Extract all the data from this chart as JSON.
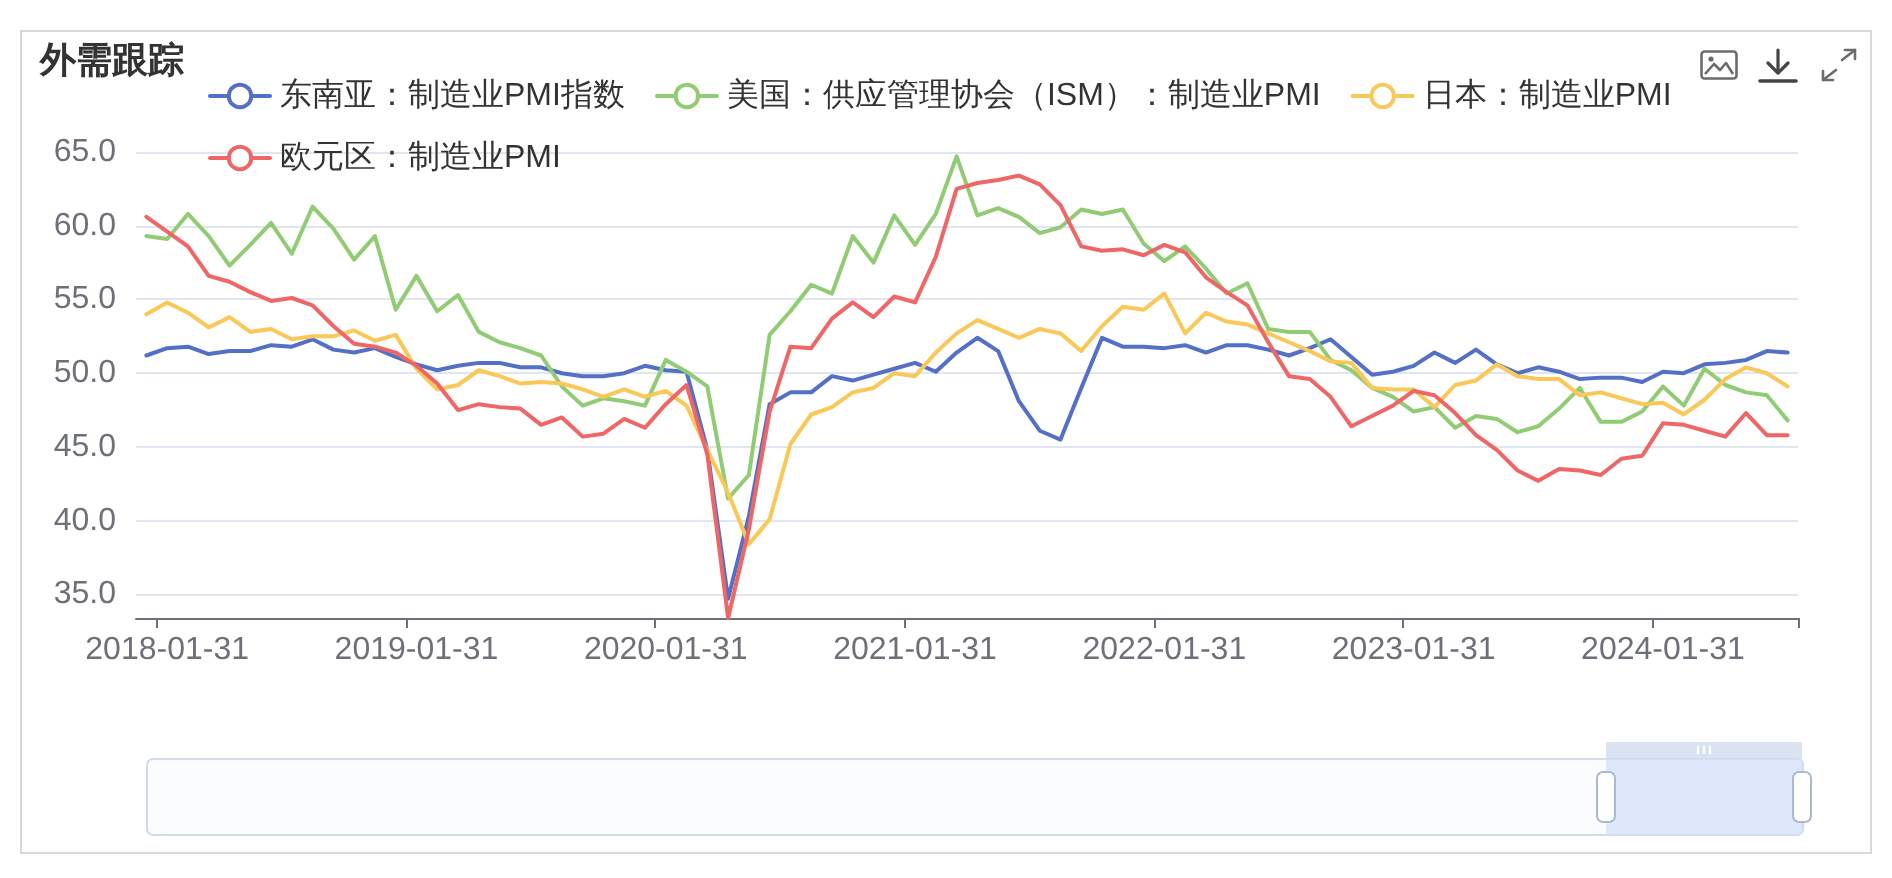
{
  "chart_data": {
    "type": "line",
    "title": "外需跟踪",
    "categories": [
      null,
      "2018-01-31",
      null,
      null,
      null,
      null,
      null,
      null,
      null,
      null,
      null,
      null,
      null,
      "2019-01-31",
      null,
      null,
      null,
      null,
      null,
      null,
      null,
      null,
      null,
      null,
      null,
      "2020-01-31",
      null,
      null,
      null,
      null,
      null,
      null,
      null,
      null,
      null,
      null,
      null,
      "2021-01-31",
      null,
      null,
      null,
      null,
      null,
      null,
      null,
      null,
      null,
      null,
      null,
      "2022-01-31",
      null,
      null,
      null,
      null,
      null,
      null,
      null,
      null,
      null,
      null,
      null,
      "2023-01-31",
      null,
      null,
      null,
      null,
      null,
      null,
      null,
      null,
      null,
      null,
      null,
      "2024-01-31",
      null,
      null,
      null,
      null,
      null,
      null
    ],
    "series": [
      {
        "name": "东南亚：制造业PMI指数",
        "color": "#5470c6",
        "values": [
          51.2,
          51.7,
          51.8,
          51.3,
          51.5,
          51.5,
          51.9,
          51.8,
          52.3,
          51.6,
          51.4,
          51.7,
          51.1,
          50.6,
          50.2,
          50.5,
          50.7,
          50.7,
          50.4,
          50.4,
          50.0,
          49.8,
          49.8,
          50.0,
          50.5,
          50.2,
          50.1,
          44.8,
          34.7,
          40.3,
          47.9,
          48.7,
          48.7,
          49.8,
          49.5,
          49.9,
          50.3,
          50.7,
          50.1,
          51.4,
          52.4,
          51.5,
          48.1,
          46.1,
          45.5,
          49.0,
          52.4,
          51.8,
          51.8,
          51.7,
          51.9,
          51.4,
          51.9,
          51.9,
          51.6,
          51.2,
          51.7,
          52.3,
          51.1,
          49.9,
          50.1,
          50.5,
          51.4,
          50.7,
          51.6,
          50.6,
          50.0,
          50.4,
          50.1,
          49.6,
          49.7,
          49.7,
          49.4,
          50.1,
          50.0,
          50.6,
          50.7,
          50.9,
          51.5,
          51.4
        ]
      },
      {
        "name": "美国：供应管理协会（ISM）：制造业PMI",
        "color": "#91cc75",
        "values": [
          59.3,
          59.1,
          60.8,
          59.3,
          57.3,
          58.7,
          60.2,
          58.1,
          61.3,
          59.8,
          57.7,
          59.3,
          54.3,
          56.6,
          54.2,
          55.3,
          52.8,
          52.1,
          51.7,
          51.2,
          49.1,
          47.8,
          48.3,
          48.1,
          47.8,
          50.9,
          50.1,
          49.1,
          41.5,
          43.1,
          52.6,
          54.2,
          56.0,
          55.4,
          59.3,
          57.5,
          60.7,
          58.7,
          60.8,
          64.7,
          60.7,
          61.2,
          60.6,
          59.5,
          59.9,
          61.1,
          60.8,
          61.1,
          58.8,
          57.6,
          58.6,
          57.1,
          55.4,
          56.1,
          53.0,
          52.8,
          52.8,
          50.9,
          50.2,
          49.0,
          48.4,
          47.4,
          47.7,
          46.3,
          47.1,
          46.9,
          46.0,
          46.4,
          47.6,
          49.0,
          46.7,
          46.7,
          47.4,
          49.1,
          47.8,
          50.3,
          49.2,
          48.7,
          48.5,
          46.8
        ]
      },
      {
        "name": "日本：制造业PMI",
        "color": "#fac858",
        "values": [
          54.0,
          54.8,
          54.1,
          53.1,
          53.8,
          52.8,
          53.0,
          52.3,
          52.5,
          52.5,
          52.9,
          52.2,
          52.6,
          50.3,
          48.9,
          49.2,
          50.2,
          49.8,
          49.3,
          49.4,
          49.3,
          48.9,
          48.4,
          48.9,
          48.4,
          48.8,
          47.8,
          44.8,
          41.9,
          38.4,
          40.1,
          45.2,
          47.2,
          47.7,
          48.7,
          49.0,
          50.0,
          49.8,
          51.4,
          52.7,
          53.6,
          53.0,
          52.4,
          53.0,
          52.7,
          51.5,
          53.2,
          54.5,
          54.3,
          55.4,
          52.7,
          54.1,
          53.5,
          53.3,
          52.7,
          52.1,
          51.5,
          50.8,
          50.7,
          49.0,
          48.9,
          48.9,
          47.7,
          49.2,
          49.5,
          50.6,
          49.8,
          49.6,
          49.6,
          48.5,
          48.7,
          48.3,
          47.9,
          48.0,
          47.2,
          48.2,
          49.6,
          50.4,
          50.0,
          49.1
        ]
      },
      {
        "name": "欧元区：制造业PMI",
        "color": "#ee6666",
        "values": [
          60.6,
          59.6,
          58.6,
          56.6,
          56.2,
          55.5,
          54.9,
          55.1,
          54.6,
          53.2,
          52.0,
          51.8,
          51.4,
          50.5,
          49.3,
          47.5,
          47.9,
          47.7,
          47.6,
          46.5,
          47.0,
          45.7,
          45.9,
          46.9,
          46.3,
          47.9,
          49.2,
          44.5,
          33.4,
          39.4,
          47.4,
          51.8,
          51.7,
          53.7,
          54.8,
          53.8,
          55.2,
          54.8,
          57.9,
          62.5,
          62.9,
          63.1,
          63.4,
          62.8,
          61.4,
          58.6,
          58.3,
          58.4,
          58.0,
          58.7,
          58.2,
          56.5,
          55.5,
          54.6,
          52.1,
          49.8,
          49.6,
          48.4,
          46.4,
          47.1,
          47.8,
          48.8,
          48.5,
          47.3,
          45.8,
          44.8,
          43.4,
          42.7,
          43.5,
          43.4,
          43.1,
          44.2,
          44.4,
          46.6,
          46.5,
          46.1,
          45.7,
          47.3,
          45.8,
          45.8
        ]
      }
    ],
    "ylim": [
      33.4,
      65
    ],
    "yticks": [
      {
        "value": 35,
        "label": "35.0"
      },
      {
        "value": 40,
        "label": "40.0"
      },
      {
        "value": 45,
        "label": "45.0"
      },
      {
        "value": 50,
        "label": "50.0"
      },
      {
        "value": 55,
        "label": "55.0"
      },
      {
        "value": 60,
        "label": "60.0"
      },
      {
        "value": 65,
        "label": "65.0"
      }
    ],
    "grid": "y",
    "legend": "top left"
  }
}
